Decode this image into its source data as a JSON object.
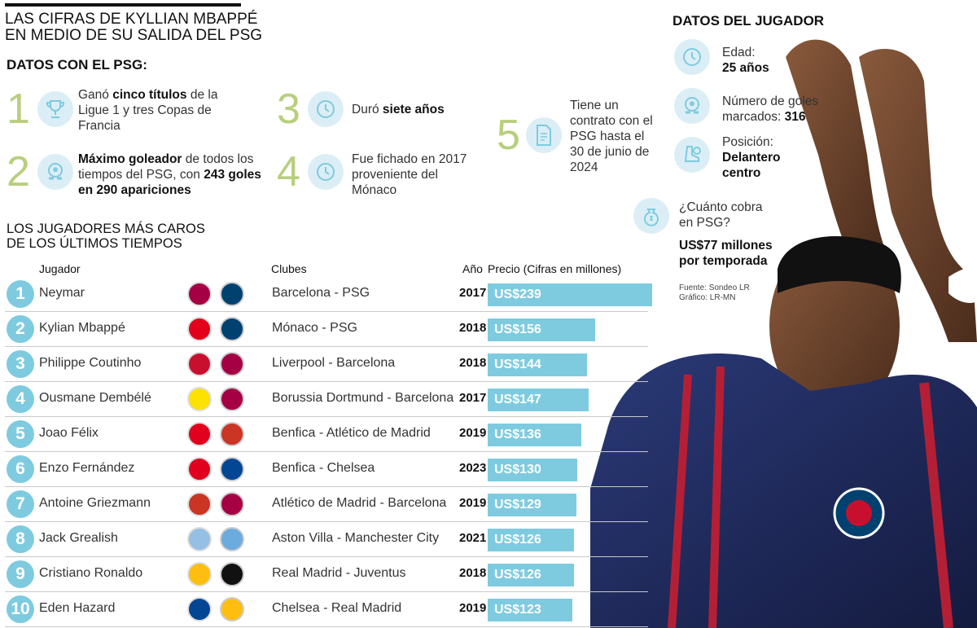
{
  "title_line1": "LAS CIFRAS DE KYLLIAN MBAPPÉ",
  "title_line2": "EN MEDIO DE SU SALIDA DEL PSG",
  "psg_section": "DATOS CON EL PSG:",
  "facts": [
    {
      "num": "1",
      "icon": "trophy-icon",
      "pre": "Ganó ",
      "bold": "cinco títulos",
      "post": " de la Ligue 1 y tres Copas de Francia"
    },
    {
      "num": "2",
      "icon": "soccer-ball-icon",
      "pre": "",
      "bold": "Máximo goleador",
      "post": " de todos los tiempos del PSG, con ",
      "bold2": "243 goles en 290 apariciones"
    },
    {
      "num": "3",
      "icon": "clock-icon",
      "pre": "Duró ",
      "bold": "siete años",
      "post": ""
    },
    {
      "num": "4",
      "icon": "clock-icon",
      "pre": "Fue fichado en 2017 proveniente del Mónaco",
      "bold": "",
      "post": ""
    },
    {
      "num": "5",
      "icon": "contract-icon",
      "pre": "Tiene un contrato con el PSG hasta el 30 de junio de 2024",
      "bold": "",
      "post": ""
    }
  ],
  "player_section": "DATOS DEL JUGADOR",
  "player_data": {
    "age_label": "Edad:",
    "age_value": "25 años",
    "goals_label": "Número de goles marcados: ",
    "goals_value": "316",
    "position_label": "Posición:",
    "position_value_1": "Delantero",
    "position_value_2": "centro",
    "salary_q1": "¿Cuánto cobra",
    "salary_q2": "en PSG?",
    "salary_v1": "US$77 millones",
    "salary_v2": "por temporada"
  },
  "source_1": "Fuente: Sondeo LR",
  "source_2": "Gráfico: LR-MN",
  "table_section_1": "LOS JUGADORES MÁS CAROS",
  "table_section_2": "DE LOS ÚLTIMOS TIEMPOS",
  "columns": {
    "player": "Jugador",
    "clubs": "Clubes",
    "year": "Año",
    "price": "Precio (Cifras en millones)"
  },
  "colors": {
    "accent": "#7ecbe0",
    "rank_green": "#b8cf7e",
    "icon_bg": "#dbeef5"
  },
  "chart_data": {
    "type": "bar",
    "title": "LOS JUGADORES MÁS CAROS DE LOS ÚLTIMOS TIEMPOS",
    "xlabel": "Precio (Cifras en millones)",
    "categories": [
      "Neymar",
      "Kylian Mbappé",
      "Philippe Coutinho",
      "Ousmane Dembélé",
      "Joao Félix",
      "Enzo Fernández",
      "Antoine Griezmann",
      "Jack Grealish",
      "Cristiano Ronaldo",
      "Eden Hazard"
    ],
    "values": [
      239,
      156,
      144,
      147,
      136,
      130,
      129,
      126,
      126,
      123
    ],
    "value_labels": [
      "US$239",
      "US$156",
      "US$144",
      "US$147",
      "US$136",
      "US$130",
      "US$129",
      "US$126",
      "US$126",
      "US$123"
    ],
    "ranks": [
      "1",
      "2",
      "3",
      "4",
      "5",
      "6",
      "7",
      "8",
      "9",
      "10"
    ],
    "clubs": [
      "Barcelona - PSG",
      "Mónaco - PSG",
      "Liverpool - Barcelona",
      "Borussia Dortmund - Barcelona",
      "Benfica - Atlético de Madrid",
      "Benfica - Chelsea",
      "Atlético de Madrid - Barcelona",
      "Aston Villa - Manchester City",
      "Real Madrid - Juventus",
      "Chelsea - Real Madrid"
    ],
    "years": [
      "2017",
      "2018",
      "2018",
      "2017",
      "2019",
      "2023",
      "2019",
      "2021",
      "2018",
      "2019"
    ],
    "crest_colors": [
      [
        "#a50044",
        "#004170"
      ],
      [
        "#e2001a",
        "#004170"
      ],
      [
        "#c8102e",
        "#a50044"
      ],
      [
        "#fde100",
        "#a50044"
      ],
      [
        "#e1001e",
        "#cb3524"
      ],
      [
        "#e1001e",
        "#034694"
      ],
      [
        "#cb3524",
        "#a50044"
      ],
      [
        "#95bfe5",
        "#6cabdd"
      ],
      [
        "#febe10",
        "#111111"
      ],
      [
        "#034694",
        "#febe10"
      ]
    ],
    "xlim": [
      0,
      239
    ]
  }
}
